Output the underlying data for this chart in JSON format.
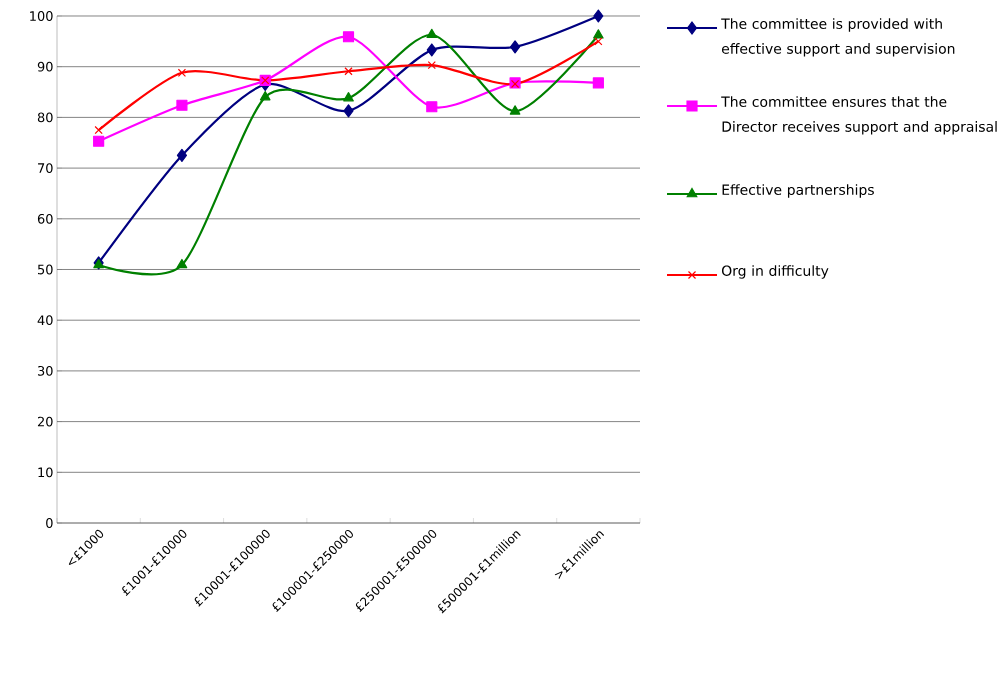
{
  "chart_data": {
    "type": "line",
    "categories": [
      "<£1000",
      "£1001-£10000",
      "£10001-£100000",
      "£100001-£250000",
      "£250001-£500000",
      "£500001-£1million",
      ">£1million"
    ],
    "series": [
      {
        "name": "The committee is provided with effective support and supervision",
        "color": "#000080",
        "marker": "diamond",
        "values": [
          51.3,
          72.5,
          86.5,
          81.3,
          93.3,
          93.9,
          100
        ]
      },
      {
        "name": "The committee ensures that the Director receives support and appraisal",
        "color": "#ff00ff",
        "marker": "square",
        "values": [
          75.3,
          82.4,
          87.3,
          95.9,
          82.1,
          86.8,
          86.8
        ]
      },
      {
        "name": "Effective partnerships",
        "color": "#008000",
        "marker": "triangle",
        "values": [
          50.9,
          50.9,
          84.0,
          83.8,
          96.3,
          81.2,
          96.2
        ]
      },
      {
        "name": "Org in difficulty",
        "color": "#ff0000",
        "marker": "cross",
        "values": [
          77.5,
          88.8,
          87.3,
          89.1,
          90.3,
          86.6,
          95.0
        ]
      }
    ],
    "ylim": [
      0,
      100
    ],
    "yticks": [
      0,
      10,
      20,
      30,
      40,
      50,
      60,
      70,
      80,
      90,
      100
    ],
    "grid": "y",
    "legend": "right"
  }
}
